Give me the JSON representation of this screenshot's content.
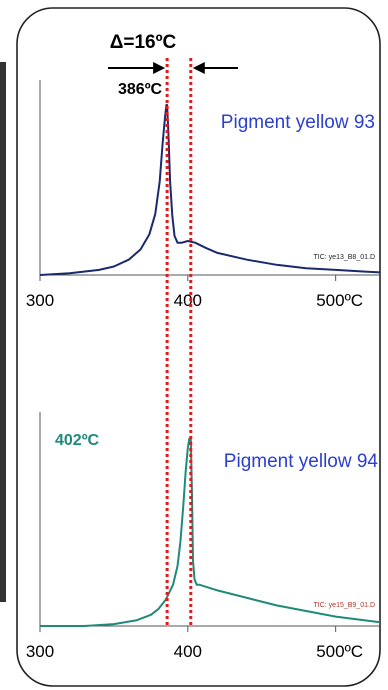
{
  "annotation": {
    "delta_text": "Δ=16ºC"
  },
  "chart_data": [
    {
      "type": "line",
      "title": "",
      "series": [
        {
          "name": "Pigment yellow 93",
          "x": [
            300,
            320,
            340,
            350,
            360,
            368,
            374,
            378,
            381,
            383,
            384.5,
            385.5,
            386,
            386.8,
            388,
            389.5,
            391,
            393,
            396,
            400,
            405,
            412,
            420,
            440,
            460,
            480,
            500,
            520,
            530
          ],
          "y": [
            0.0,
            0.01,
            0.03,
            0.05,
            0.09,
            0.15,
            0.24,
            0.36,
            0.55,
            0.78,
            0.92,
            1.0,
            1.0,
            0.85,
            0.55,
            0.35,
            0.23,
            0.19,
            0.19,
            0.2,
            0.19,
            0.16,
            0.13,
            0.09,
            0.06,
            0.04,
            0.03,
            0.02,
            0.015
          ],
          "color": "#1a2a6c"
        }
      ],
      "peak_label": "386ºC",
      "peak_label_color": "#000000",
      "series_label_color": "#2b3fd0",
      "file_label": "TIC:  ye13_B8_01.D",
      "x_ticks": [
        "300",
        "400",
        "500ºC"
      ],
      "x_tick_values": [
        300,
        400,
        500
      ],
      "xlim": [
        300,
        530
      ],
      "ylim": [
        0,
        1.1
      ]
    },
    {
      "type": "line",
      "title": "",
      "series": [
        {
          "name": "Pigment yellow 94",
          "x": [
            300,
            330,
            350,
            365,
            375,
            380,
            385,
            390,
            393,
            395,
            397,
            398.5,
            400,
            401,
            402,
            402.8,
            403.5,
            404.5,
            406,
            408,
            412,
            420,
            440,
            460,
            480,
            500,
            520,
            530
          ],
          "y": [
            0.0,
            0.0,
            0.01,
            0.03,
            0.06,
            0.09,
            0.14,
            0.22,
            0.32,
            0.45,
            0.65,
            0.82,
            0.95,
            1.0,
            1.0,
            0.7,
            0.35,
            0.25,
            0.22,
            0.22,
            0.21,
            0.19,
            0.15,
            0.11,
            0.08,
            0.05,
            0.03,
            0.02
          ],
          "color": "#1f8a7a"
        }
      ],
      "peak_label": "402ºC",
      "peak_label_color": "#1f8a7a",
      "series_label_color": "#2b3fd0",
      "file_label": "TIC: ye15_B9_01.D",
      "x_ticks": [
        "300",
        "400",
        "500ºC"
      ],
      "x_tick_values": [
        300,
        400,
        500
      ],
      "xlim": [
        300,
        530
      ],
      "ylim": [
        0,
        1.1
      ]
    }
  ],
  "markers": {
    "peak_temps": [
      386,
      402
    ],
    "line_color": "#e11b1b",
    "arrow_color": "#000000"
  }
}
